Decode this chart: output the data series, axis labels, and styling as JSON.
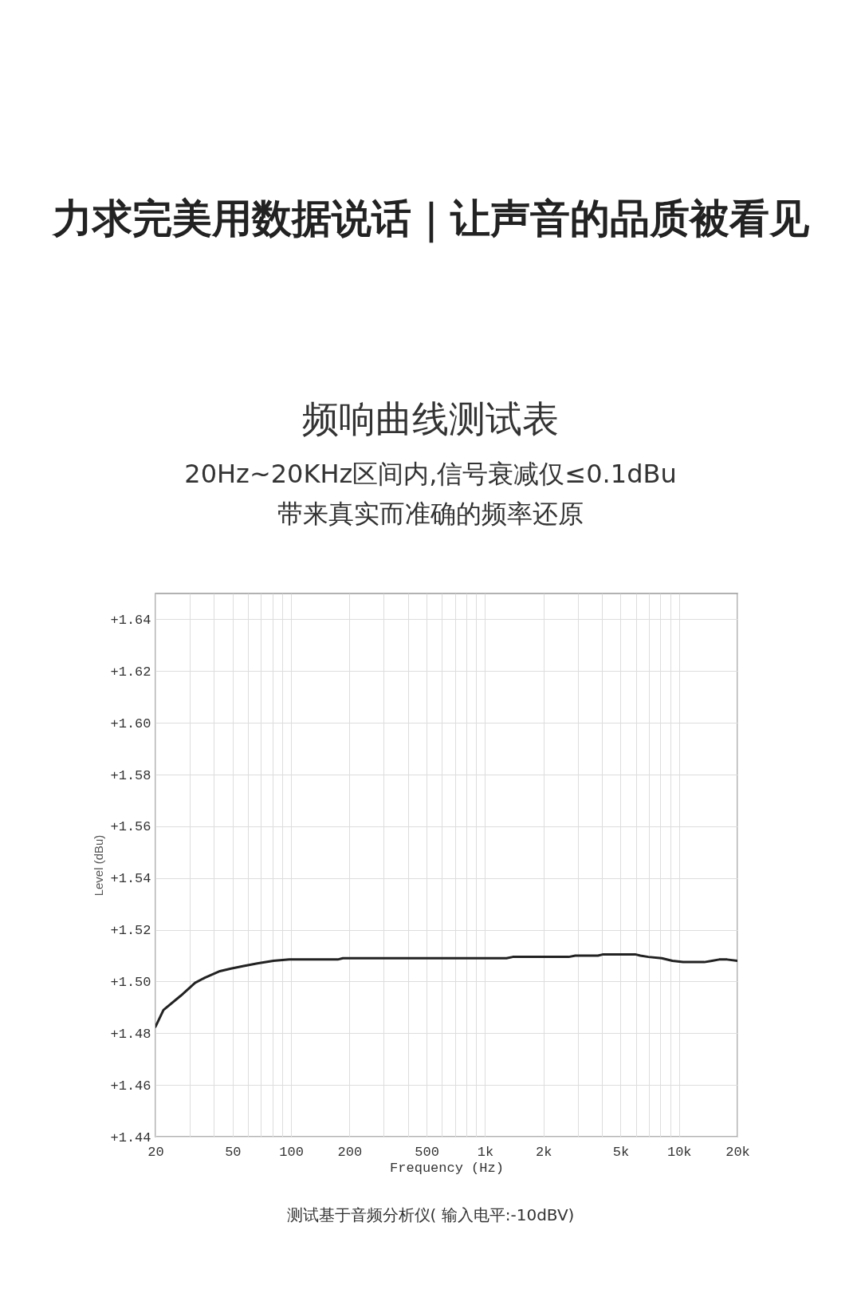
{
  "chart_data": {
    "type": "line",
    "title": "力求完美用数据说话｜让声音的品质被看见",
    "subtitle": "频响曲线测试表",
    "annotations": [
      "20Hz~20KHz区间内,信号衰减仅≤0.1dBu",
      "带来真实而准确的频率还原",
      "测试基于音频分析仪( 输入电平:-10dBV)"
    ],
    "xlabel": "Frequency (Hz)",
    "ylabel": "Level (dBu)",
    "log": "x",
    "grid": true,
    "x": [
      20,
      22,
      27,
      32,
      36,
      43,
      49,
      57,
      67,
      81,
      98,
      123,
      174,
      185,
      500,
      1000,
      1290,
      1390,
      2700,
      2920,
      3820,
      4070,
      5940,
      6320,
      6950,
      8150,
      9240,
      10500,
      13500,
      14800,
      16100,
      17700,
      20000
    ],
    "series": [
      {
        "color": "#222222",
        "values": [
          1.4825,
          1.489,
          1.4945,
          1.4995,
          1.5015,
          1.504,
          1.505,
          1.506,
          1.507,
          1.508,
          1.5085,
          1.5085,
          1.5085,
          1.509,
          1.509,
          1.509,
          1.509,
          1.5095,
          1.5095,
          1.51,
          1.51,
          1.5105,
          1.5105,
          1.51,
          1.5095,
          1.509,
          1.508,
          1.5075,
          1.5075,
          1.508,
          1.5085,
          1.5085,
          1.508
        ]
      }
    ],
    "xlim": [
      20,
      20000
    ],
    "xticks": [
      20,
      {
        "value": 30,
        "label": null
      },
      {
        "value": 40,
        "label": null
      },
      50,
      {
        "value": 60,
        "label": null
      },
      {
        "value": 70,
        "label": null
      },
      {
        "value": 80,
        "label": null
      },
      {
        "value": 90,
        "label": null
      },
      100,
      200,
      {
        "value": 300,
        "label": null
      },
      {
        "value": 400,
        "label": null
      },
      500,
      {
        "value": 600,
        "label": null
      },
      {
        "value": 700,
        "label": null
      },
      {
        "value": 800,
        "label": null
      },
      {
        "value": 900,
        "label": null
      },
      {
        "value": 1000,
        "label": "1k"
      },
      {
        "value": 2000,
        "label": "2k"
      },
      {
        "value": 3000,
        "label": null
      },
      {
        "value": 4000,
        "label": null
      },
      {
        "value": 5000,
        "label": "5k"
      },
      {
        "value": 6000,
        "label": null
      },
      {
        "value": 7000,
        "label": null
      },
      {
        "value": 8000,
        "label": null
      },
      {
        "value": 9000,
        "label": null
      },
      {
        "value": 10000,
        "label": "10k"
      },
      {
        "value": 20000,
        "label": "20k"
      }
    ],
    "ylim": [
      1.44,
      1.65
    ],
    "yticks": [
      {
        "value": 1.44,
        "label": "+1.44"
      },
      {
        "value": 1.46,
        "label": "+1.46"
      },
      {
        "value": 1.48,
        "label": "+1.48"
      },
      {
        "value": 1.5,
        "label": "+1.50"
      },
      {
        "value": 1.52,
        "label": "+1.52"
      },
      {
        "value": 1.54,
        "label": "+1.54"
      },
      {
        "value": 1.56,
        "label": "+1.56"
      },
      {
        "value": 1.58,
        "label": "+1.58"
      },
      {
        "value": 1.6,
        "label": "+1.60"
      },
      {
        "value": 1.62,
        "label": "+1.62"
      },
      {
        "value": 1.64,
        "label": "+1.64"
      }
    ]
  }
}
